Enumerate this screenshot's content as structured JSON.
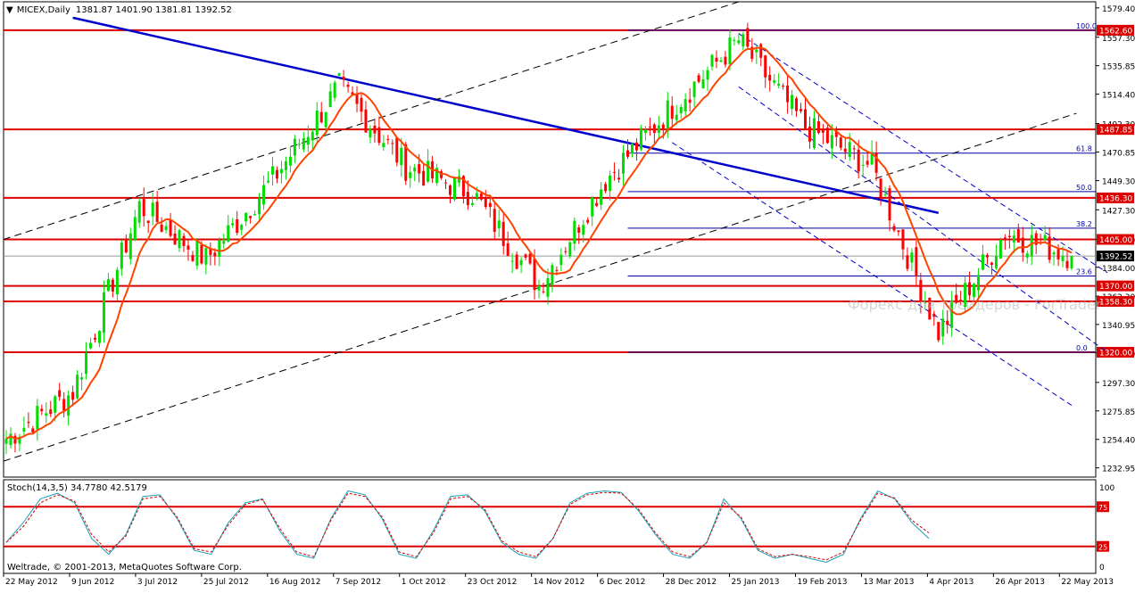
{
  "header": {
    "arrow": "▼",
    "symbol": "MICEX,Daily",
    "ohlc": "1381.87 1401.90 1381.81 1392.52"
  },
  "indicator": {
    "label": "Stoch(14,3,5) 34.7780 42.5179"
  },
  "footer": {
    "copyright": "Weltrade, © 2001-2013, MetaQuotes Software Corp."
  },
  "watermark": "Форекс для трейдеров - ForTrader",
  "colors": {
    "background": "#ffffff",
    "bull_candle": "#00dd00",
    "bear_candle": "#ff0000",
    "ma_line": "#ff4400",
    "trendline_main": "#0000cc",
    "channel_dashed": "#0000cc",
    "black_channel": "#000000",
    "resistance_line": "#dd0000",
    "fib_line": "#0000aa",
    "stoch_main": "#17a2b8",
    "stoch_signal": "#dd0000",
    "current_price_badge": "#000000"
  },
  "chart_data": [
    {
      "type": "candlestick",
      "title": "MICEX,Daily",
      "x_ticks": [
        "22 May 2012",
        "9 Jun 2012",
        "3 Jul 2012",
        "25 Jul 2012",
        "16 Aug 2012",
        "7 Sep 2012",
        "1 Oct 2012",
        "23 Oct 2012",
        "14 Nov 2012",
        "6 Dec 2012",
        "28 Dec 2012",
        "25 Jan 2013",
        "19 Feb 2013",
        "13 Mar 2013",
        "4 Apr 2013",
        "26 Apr 2013",
        "22 May 2013"
      ],
      "y_ticks": [
        "1579.40",
        "1557.30",
        "1535.85",
        "1514.40",
        "1492.30",
        "1470.85",
        "1449.30",
        "1427.30",
        "1405.00",
        "1384.00",
        "1362.30",
        "1340.95",
        "1319.50",
        "1297.30",
        "1275.85",
        "1254.40",
        "1232.95"
      ],
      "ylim": [
        1226,
        1584
      ],
      "key_points": [
        {
          "date": "22 May 2012",
          "close": 1255
        },
        {
          "date": "9 Jun 2012",
          "close": 1290
        },
        {
          "date": "3 Jul 2012",
          "close": 1430
        },
        {
          "date": "25 Jul 2012",
          "close": 1390
        },
        {
          "date": "16 Aug 2012",
          "close": 1450
        },
        {
          "date": "7 Sep 2012",
          "close": 1520
        },
        {
          "date": "1 Oct 2012",
          "close": 1460
        },
        {
          "date": "23 Oct 2012",
          "close": 1440
        },
        {
          "date": "14 Nov 2012",
          "close": 1370
        },
        {
          "date": "6 Dec 2012",
          "close": 1450
        },
        {
          "date": "28 Dec 2012",
          "close": 1505
        },
        {
          "date": "25 Jan 2013",
          "close": 1555
        },
        {
          "date": "19 Feb 2013",
          "close": 1490
        },
        {
          "date": "13 Mar 2013",
          "close": 1460
        },
        {
          "date": "4 Apr 2013",
          "close": 1335
        },
        {
          "date": "26 Apr 2013",
          "close": 1410
        },
        {
          "date": "22 May 2013",
          "close": 1392.52
        }
      ],
      "levels": [
        {
          "label": "1562.60",
          "value": 1562.6
        },
        {
          "label": "1487.85",
          "value": 1487.85
        },
        {
          "label": "1436.30",
          "value": 1436.3
        },
        {
          "label": "1405.00",
          "value": 1405.0
        },
        {
          "label": "1370.00",
          "value": 1370.0
        },
        {
          "label": "1358.30",
          "value": 1358.3
        },
        {
          "label": "1320.00",
          "value": 1320.0
        }
      ],
      "current_price": {
        "label": "1392.52",
        "value": 1392.52
      },
      "fibonacci": [
        {
          "label": "100.0",
          "value": 1562.6
        },
        {
          "label": "61.8",
          "value": 1470.0
        },
        {
          "label": "50.0",
          "value": 1441.0
        },
        {
          "label": "38.2",
          "value": 1413.5
        },
        {
          "label": "23.6",
          "value": 1377.5
        },
        {
          "label": "0.0",
          "value": 1320.0
        }
      ]
    },
    {
      "type": "line",
      "title": "Stoch(14,3,5) 34.7780 42.5179",
      "y_ticks": [
        "100",
        "75",
        "25",
        "0"
      ],
      "ylim": [
        0,
        100
      ],
      "levels": [
        75,
        25
      ],
      "series": [
        {
          "values": [
            30,
            55,
            85,
            92,
            80,
            35,
            15,
            40,
            88,
            90,
            60,
            20,
            15,
            55,
            80,
            85,
            45,
            15,
            10,
            60,
            95,
            90,
            60,
            15,
            10,
            45,
            88,
            90,
            70,
            30,
            15,
            10,
            35,
            80,
            92,
            95,
            93,
            70,
            40,
            15,
            10,
            30,
            85,
            60,
            20,
            10,
            15,
            10,
            5,
            15,
            60,
            95,
            85,
            55,
            35
          ]
        },
        {
          "values": [
            30,
            50,
            80,
            90,
            82,
            40,
            18,
            38,
            85,
            88,
            62,
            22,
            18,
            52,
            78,
            84,
            48,
            18,
            12,
            58,
            92,
            88,
            62,
            18,
            12,
            42,
            85,
            88,
            72,
            32,
            18,
            12,
            35,
            78,
            90,
            93,
            92,
            72,
            42,
            18,
            12,
            30,
            80,
            62,
            22,
            12,
            15,
            12,
            8,
            18,
            58,
            92,
            86,
            58,
            42
          ]
        }
      ]
    }
  ]
}
